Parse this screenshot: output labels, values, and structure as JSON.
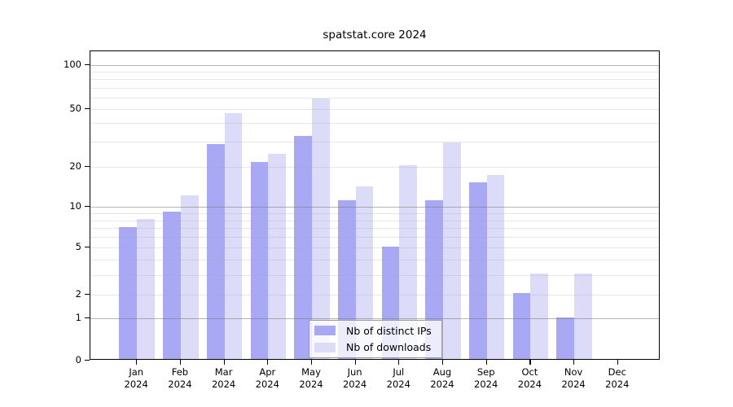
{
  "chart_data": {
    "type": "bar",
    "title": "spatstat.core 2024",
    "categories": [
      "Jan",
      "Feb",
      "Mar",
      "Apr",
      "May",
      "Jun",
      "Jul",
      "Aug",
      "Sep",
      "Oct",
      "Nov",
      "Dec"
    ],
    "year_label": "2024",
    "series": [
      {
        "name": "Nb of distinct IPs",
        "color": "#a8a8f5",
        "values": [
          7,
          9,
          28,
          21,
          32,
          11,
          5,
          11,
          15,
          2,
          1,
          0
        ]
      },
      {
        "name": "Nb of downloads",
        "color": "#dcdcf9",
        "values": [
          8,
          12,
          46,
          24,
          58,
          14,
          20,
          29,
          17,
          3,
          3,
          0
        ]
      }
    ],
    "xlabel": "",
    "ylabel": "",
    "yscale": "log1p",
    "yticks": [
      0,
      1,
      2,
      5,
      10,
      20,
      50,
      100
    ],
    "ylim": [
      0,
      115
    ],
    "grid": "horizontal",
    "legend_position": "bottom-center-inside"
  }
}
